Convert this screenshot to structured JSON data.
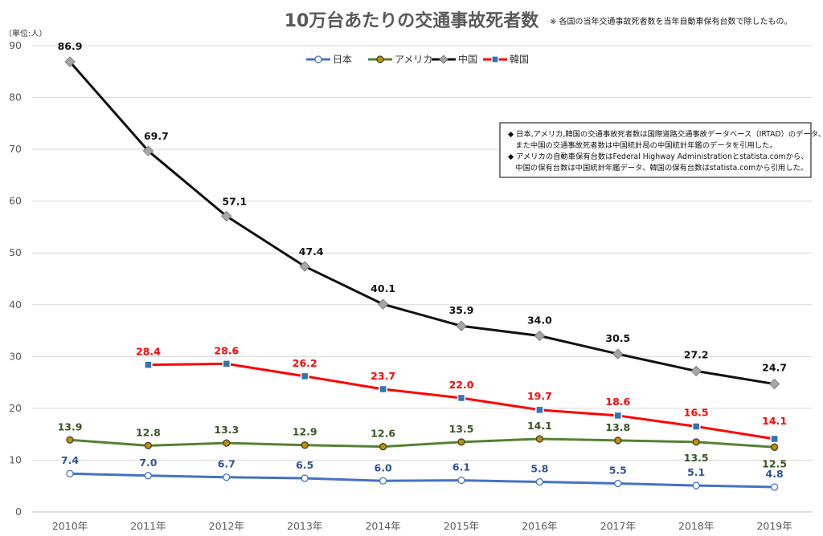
{
  "title": "10万台あたりの交通事故死者数",
  "title_note": "※ 各国の当年交通事故死者数を当年自動車保有台数で除したもの。",
  "unit_label": "（単位:人）",
  "source_notes": [
    "◆ 日本,アメリカ,韓国の交通事故死者数は国際道路交通事故データベース（IRTAD）のデータ、",
    "　また中国の交通事故死者数は中国統計局の中国統計年鑑のデータを引用した。",
    "◆ アメリカの自動車保有台数はFederal Highway Administrationとstatista.comから、",
    "　中国の保有台数は中国統計年鑑データ、韓国の保有台数はstatista.comから引用した。"
  ],
  "chart_data": {
    "type": "line",
    "title": "10万台あたりの交通事故死者数",
    "ylabel": "（単位:人）",
    "ylim": [
      0,
      90
    ],
    "yticks": [
      "0",
      "10",
      "20",
      "30",
      "40",
      "50",
      "60",
      "70",
      "80",
      "90"
    ],
    "categories": [
      "2010年",
      "2011年",
      "2012年",
      "2013年",
      "2014年",
      "2015年",
      "2016年",
      "2017年",
      "2018年",
      "2019年"
    ],
    "legend_position": "top-center",
    "grid": "horizontal",
    "series": [
      {
        "name": "日本",
        "color": "#4472C4",
        "label_color": "#2F5597",
        "marker": "circle",
        "values": [
          7.4,
          7.0,
          6.7,
          6.5,
          6.0,
          6.1,
          5.8,
          5.5,
          5.1,
          4.8
        ],
        "labels": [
          "7.4",
          "7.0",
          "6.7",
          "6.5",
          "6.0",
          "6.1",
          "5.8",
          "5.5",
          "5.1",
          "4.8"
        ]
      },
      {
        "name": "アメリカ",
        "color": "#548235",
        "label_color": "#375623",
        "marker": "circle",
        "values": [
          13.9,
          12.8,
          13.3,
          12.9,
          12.6,
          13.5,
          14.1,
          13.8,
          13.5,
          12.5
        ],
        "labels": [
          "13.9",
          "12.8",
          "13.3",
          "12.9",
          "12.6",
          "13.5",
          "14.1",
          "13.8",
          "13.5",
          "12.5"
        ]
      },
      {
        "name": "中国",
        "color": "#111111",
        "label_color": "#111111",
        "marker": "diamond",
        "values": [
          86.9,
          69.7,
          57.1,
          47.4,
          40.1,
          35.9,
          34.0,
          30.5,
          27.2,
          24.7
        ],
        "labels": [
          "86.9",
          "69.7",
          "57.1",
          "47.4",
          "40.1",
          "35.9",
          "34.0",
          "30.5",
          "27.2",
          "24.7"
        ]
      },
      {
        "name": "韓国",
        "color": "#FF0000",
        "label_color": "#FF0000",
        "marker": "square",
        "values": [
          null,
          28.4,
          28.6,
          26.2,
          23.7,
          22.0,
          19.7,
          18.6,
          16.5,
          14.1
        ],
        "labels": [
          null,
          "28.4",
          "28.6",
          "26.2",
          "23.7",
          "22.0",
          "19.7",
          "18.6",
          "16.5",
          "14.1"
        ]
      }
    ]
  }
}
